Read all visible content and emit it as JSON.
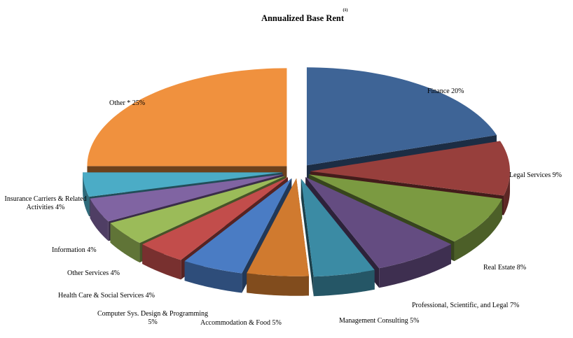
{
  "chart_data": {
    "type": "pie",
    "title": "Annualized Base Rent",
    "title_superscript": "(1)",
    "legend": "none",
    "slices": [
      {
        "label": "Finance",
        "value": 20,
        "display": "20%",
        "color": "#3e6496"
      },
      {
        "label": "Legal Services",
        "value": 9,
        "display": "9%",
        "color": "#973f3c"
      },
      {
        "label": "Real Estate",
        "value": 8,
        "display": "8%",
        "color": "#7b9a41"
      },
      {
        "label": "Professional, Scientific, and Legal",
        "value": 7,
        "display": "7%",
        "color": "#644c81"
      },
      {
        "label": "Management Consulting",
        "value": 5,
        "display": "5%",
        "color": "#3b8ba4"
      },
      {
        "label": "Accommodation & Food",
        "value": 5,
        "display": "5%",
        "color": "#d07a2f"
      },
      {
        "label": "Computer Sys. Design & Programming",
        "value": 5,
        "display": "5%",
        "color": "#4a7cc4"
      },
      {
        "label": "Health Care & Social Services",
        "value": 4,
        "display": "4%",
        "color": "#c24d4b"
      },
      {
        "label": "Other Services",
        "value": 4,
        "display": "4%",
        "color": "#9bbb59"
      },
      {
        "label": "Information",
        "value": 4,
        "display": "4%",
        "color": "#8064a2"
      },
      {
        "label": "Insurance Carriers & Related Activities",
        "value": 4,
        "display": "4%",
        "color": "#4bacc6"
      },
      {
        "label": "Other *",
        "value": 25,
        "display": "25%",
        "color": "#f0913e"
      }
    ]
  }
}
